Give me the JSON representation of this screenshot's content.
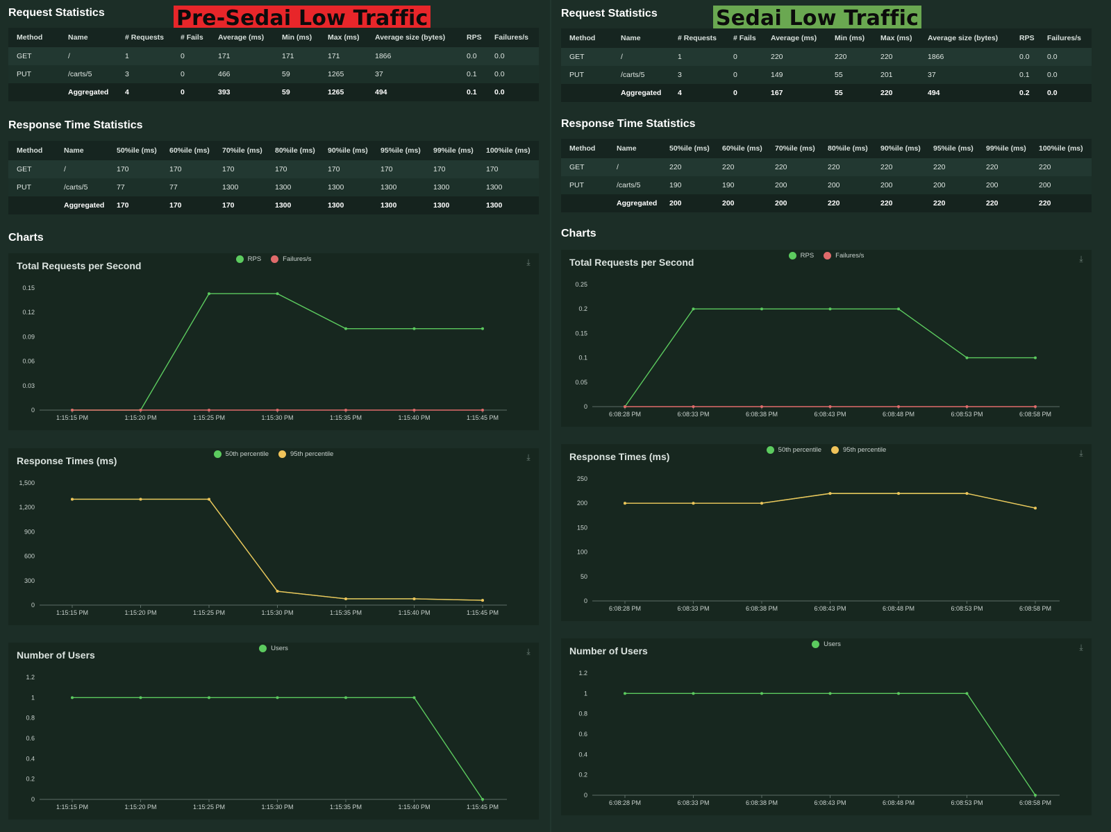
{
  "colors": {
    "green": "#5ccb5f",
    "red": "#e06b6b",
    "yellow": "#f0c35a",
    "banner_red": "#e8262a",
    "banner_green": "#6aa851"
  },
  "panels": [
    {
      "banner": "Pre-Sedai Low Traffic",
      "banner_color": "#e8262a",
      "request_stats": {
        "title": "Request Statistics",
        "headers": [
          "Method",
          "Name",
          "# Requests",
          "# Fails",
          "Average (ms)",
          "Min (ms)",
          "Max (ms)",
          "Average size (bytes)",
          "RPS",
          "Failures/s"
        ],
        "rows": [
          [
            "GET",
            "/",
            "1",
            "0",
            "171",
            "171",
            "171",
            "1866",
            "0.0",
            "0.0"
          ],
          [
            "PUT",
            "/carts/5",
            "3",
            "0",
            "466",
            "59",
            "1265",
            "37",
            "0.1",
            "0.0"
          ]
        ],
        "aggregated": [
          "",
          "Aggregated",
          "4",
          "0",
          "393",
          "59",
          "1265",
          "494",
          "0.1",
          "0.0"
        ]
      },
      "response_stats": {
        "title": "Response Time Statistics",
        "headers": [
          "Method",
          "Name",
          "50%ile (ms)",
          "60%ile (ms)",
          "70%ile (ms)",
          "80%ile (ms)",
          "90%ile (ms)",
          "95%ile (ms)",
          "99%ile (ms)",
          "100%ile (ms)"
        ],
        "rows": [
          [
            "GET",
            "/",
            "170",
            "170",
            "170",
            "170",
            "170",
            "170",
            "170",
            "170"
          ],
          [
            "PUT",
            "/carts/5",
            "77",
            "77",
            "1300",
            "1300",
            "1300",
            "1300",
            "1300",
            "1300"
          ]
        ],
        "aggregated": [
          "",
          "Aggregated",
          "170",
          "170",
          "170",
          "1300",
          "1300",
          "1300",
          "1300",
          "1300"
        ]
      },
      "charts_title": "Charts",
      "chart_data": [
        {
          "type": "line",
          "title": "Total Requests per Second",
          "x": [
            "1:15:15 PM",
            "1:15:20 PM",
            "1:15:25 PM",
            "1:15:30 PM",
            "1:15:35 PM",
            "1:15:40 PM",
            "1:15:45 PM"
          ],
          "yticks": [
            0,
            0.03,
            0.06,
            0.09,
            0.12,
            0.15
          ],
          "ytick_labels": [
            "0",
            "0.03",
            "0.06",
            "0.09",
            "0.12",
            "0.15"
          ],
          "ylim": [
            0,
            0.15
          ],
          "series": [
            {
              "name": "RPS",
              "color": "#5ccb5f",
              "values": [
                0,
                0,
                0.143,
                0.143,
                0.1,
                0.1,
                0.1
              ]
            },
            {
              "name": "Failures/s",
              "color": "#e06b6b",
              "values": [
                0,
                0,
                0,
                0,
                0,
                0,
                0
              ]
            }
          ],
          "legend_position": "top-center"
        },
        {
          "type": "line",
          "title": "Response Times (ms)",
          "x": [
            "1:15:15 PM",
            "1:15:20 PM",
            "1:15:25 PM",
            "1:15:30 PM",
            "1:15:35 PM",
            "1:15:40 PM",
            "1:15:45 PM"
          ],
          "yticks": [
            0,
            300,
            600,
            900,
            1200,
            1500
          ],
          "ytick_labels": [
            "0",
            "300",
            "600",
            "900",
            "1,200",
            "1,500"
          ],
          "ylim": [
            0,
            1500
          ],
          "series": [
            {
              "name": "50th percentile",
              "color": "#5ccb5f",
              "values": [
                1300,
                1300,
                1300,
                170,
                77,
                77,
                59
              ]
            },
            {
              "name": "95th percentile",
              "color": "#f0c35a",
              "values": [
                1300,
                1300,
                1300,
                170,
                77,
                77,
                59
              ]
            }
          ],
          "legend_position": "top-center"
        },
        {
          "type": "line",
          "title": "Number of Users",
          "x": [
            "1:15:15 PM",
            "1:15:20 PM",
            "1:15:25 PM",
            "1:15:30 PM",
            "1:15:35 PM",
            "1:15:40 PM",
            "1:15:45 PM"
          ],
          "yticks": [
            0,
            0.2,
            0.4,
            0.6,
            0.8,
            1,
            1.2
          ],
          "ytick_labels": [
            "0",
            "0.2",
            "0.4",
            "0.6",
            "0.8",
            "1",
            "1.2"
          ],
          "ylim": [
            0,
            1.2
          ],
          "series": [
            {
              "name": "Users",
              "color": "#5ccb5f",
              "values": [
                1,
                1,
                1,
                1,
                1,
                1,
                0
              ]
            }
          ],
          "legend_position": "top-center"
        }
      ]
    },
    {
      "banner": "Sedai Low Traffic",
      "banner_color": "#6aa851",
      "request_stats": {
        "title": "Request Statistics",
        "headers": [
          "Method",
          "Name",
          "# Requests",
          "# Fails",
          "Average (ms)",
          "Min (ms)",
          "Max (ms)",
          "Average size (bytes)",
          "RPS",
          "Failures/s"
        ],
        "rows": [
          [
            "GET",
            "/",
            "1",
            "0",
            "220",
            "220",
            "220",
            "1866",
            "0.0",
            "0.0"
          ],
          [
            "PUT",
            "/carts/5",
            "3",
            "0",
            "149",
            "55",
            "201",
            "37",
            "0.1",
            "0.0"
          ]
        ],
        "aggregated": [
          "",
          "Aggregated",
          "4",
          "0",
          "167",
          "55",
          "220",
          "494",
          "0.2",
          "0.0"
        ]
      },
      "response_stats": {
        "title": "Response Time Statistics",
        "headers": [
          "Method",
          "Name",
          "50%ile (ms)",
          "60%ile (ms)",
          "70%ile (ms)",
          "80%ile (ms)",
          "90%ile (ms)",
          "95%ile (ms)",
          "99%ile (ms)",
          "100%ile (ms)"
        ],
        "rows": [
          [
            "GET",
            "/",
            "220",
            "220",
            "220",
            "220",
            "220",
            "220",
            "220",
            "220"
          ],
          [
            "PUT",
            "/carts/5",
            "190",
            "190",
            "200",
            "200",
            "200",
            "200",
            "200",
            "200"
          ]
        ],
        "aggregated": [
          "",
          "Aggregated",
          "200",
          "200",
          "200",
          "220",
          "220",
          "220",
          "220",
          "220"
        ]
      },
      "charts_title": "Charts",
      "chart_data": [
        {
          "type": "line",
          "title": "Total Requests per Second",
          "x": [
            "6:08:28 PM",
            "6:08:33 PM",
            "6:08:38 PM",
            "6:08:43 PM",
            "6:08:48 PM",
            "6:08:53 PM",
            "6:08:58 PM"
          ],
          "yticks": [
            0,
            0.05,
            0.1,
            0.15,
            0.2,
            0.25
          ],
          "ytick_labels": [
            "0",
            "0.05",
            "0.1",
            "0.15",
            "0.2",
            "0.25"
          ],
          "ylim": [
            0,
            0.25
          ],
          "series": [
            {
              "name": "RPS",
              "color": "#5ccb5f",
              "values": [
                0,
                0.2,
                0.2,
                0.2,
                0.2,
                0.1,
                0.1
              ]
            },
            {
              "name": "Failures/s",
              "color": "#e06b6b",
              "values": [
                0,
                0,
                0,
                0,
                0,
                0,
                0
              ]
            }
          ],
          "legend_position": "top-center"
        },
        {
          "type": "line",
          "title": "Response Times (ms)",
          "x": [
            "6:08:28 PM",
            "6:08:33 PM",
            "6:08:38 PM",
            "6:08:43 PM",
            "6:08:48 PM",
            "6:08:53 PM",
            "6:08:58 PM"
          ],
          "yticks": [
            0,
            50,
            100,
            150,
            200,
            250
          ],
          "ytick_labels": [
            "0",
            "50",
            "100",
            "150",
            "200",
            "250"
          ],
          "ylim": [
            0,
            250
          ],
          "series": [
            {
              "name": "50th percentile",
              "color": "#5ccb5f",
              "values": [
                200,
                200,
                200,
                220,
                220,
                220,
                190
              ]
            },
            {
              "name": "95th percentile",
              "color": "#f0c35a",
              "values": [
                200,
                200,
                200,
                220,
                220,
                220,
                190
              ]
            }
          ],
          "legend_position": "top-center"
        },
        {
          "type": "line",
          "title": "Number of Users",
          "x": [
            "6:08:28 PM",
            "6:08:33 PM",
            "6:08:38 PM",
            "6:08:43 PM",
            "6:08:48 PM",
            "6:08:53 PM",
            "6:08:58 PM"
          ],
          "yticks": [
            0,
            0.2,
            0.4,
            0.6,
            0.8,
            1,
            1.2
          ],
          "ytick_labels": [
            "0",
            "0.2",
            "0.4",
            "0.6",
            "0.8",
            "1",
            "1.2"
          ],
          "ylim": [
            0,
            1.2
          ],
          "series": [
            {
              "name": "Users",
              "color": "#5ccb5f",
              "values": [
                1,
                1,
                1,
                1,
                1,
                1,
                0
              ]
            }
          ],
          "legend_position": "top-center"
        }
      ]
    }
  ]
}
